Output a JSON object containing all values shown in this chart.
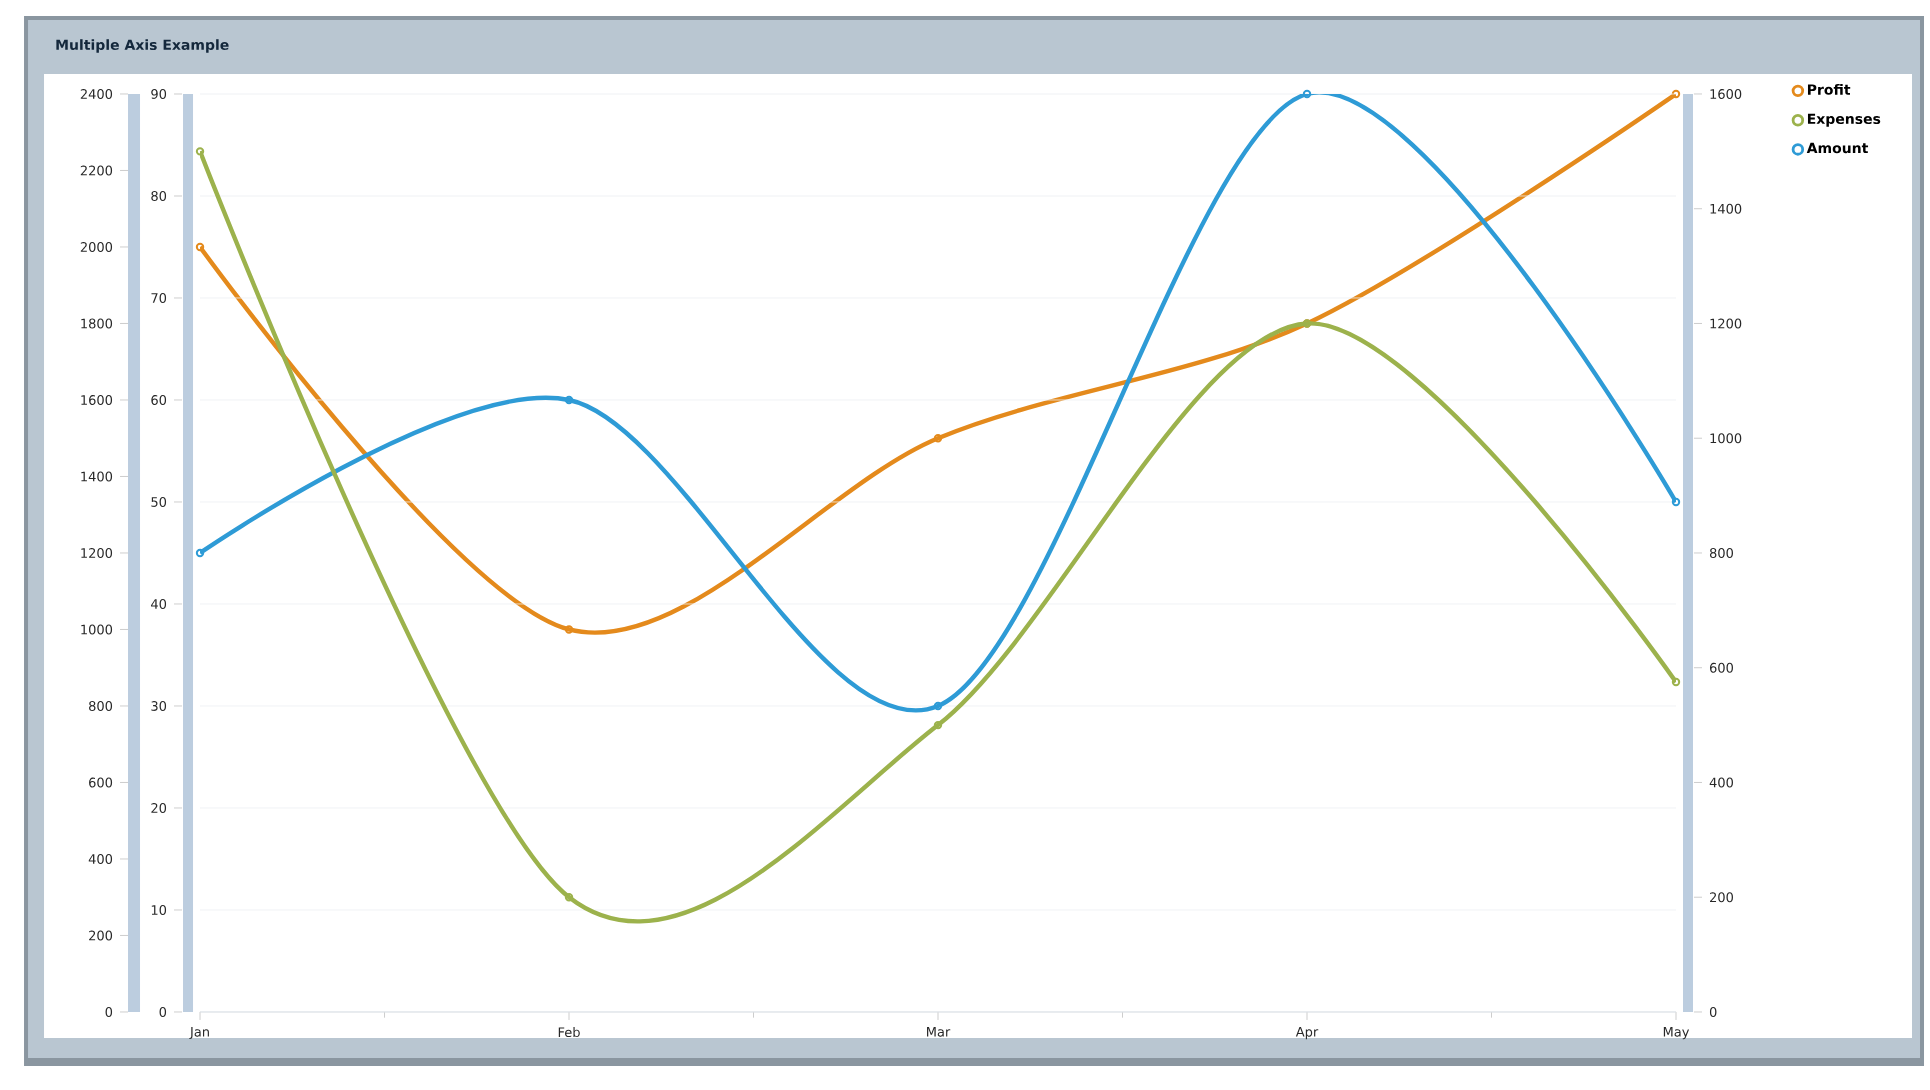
{
  "chart_data": {
    "type": "line",
    "title": "Multiple Axis Example",
    "categories": [
      "Jan",
      "Feb",
      "Mar",
      "Apr",
      "May"
    ],
    "series": [
      {
        "name": "Profit",
        "color": "#e48a1c",
        "axis": "y",
        "values": [
          2000,
          1000,
          1500,
          1800,
          2400
        ]
      },
      {
        "name": "Expenses",
        "color": "#9cb24c",
        "axis": "y3",
        "values": [
          1500,
          200,
          500,
          1200,
          575
        ]
      },
      {
        "name": "Amount",
        "color": "#2e9bd6",
        "axis": "y2",
        "values": [
          45,
          60,
          30,
          90,
          50
        ]
      }
    ],
    "ylim": [
      0,
      2400
    ],
    "yticks": [
      0,
      200,
      400,
      600,
      800,
      1000,
      1200,
      1400,
      1600,
      1800,
      2000,
      2200,
      2400
    ],
    "y2lim": [
      0,
      90
    ],
    "y2ticks": [
      0,
      10,
      20,
      30,
      40,
      50,
      60,
      70,
      80,
      90
    ],
    "y3lim": [
      0,
      1600
    ],
    "y3ticks": [
      0,
      200,
      400,
      600,
      800,
      1000,
      1200,
      1400,
      1600
    ],
    "grid": "y",
    "legend": "top right",
    "marker": "circle",
    "line_style": "solid"
  }
}
